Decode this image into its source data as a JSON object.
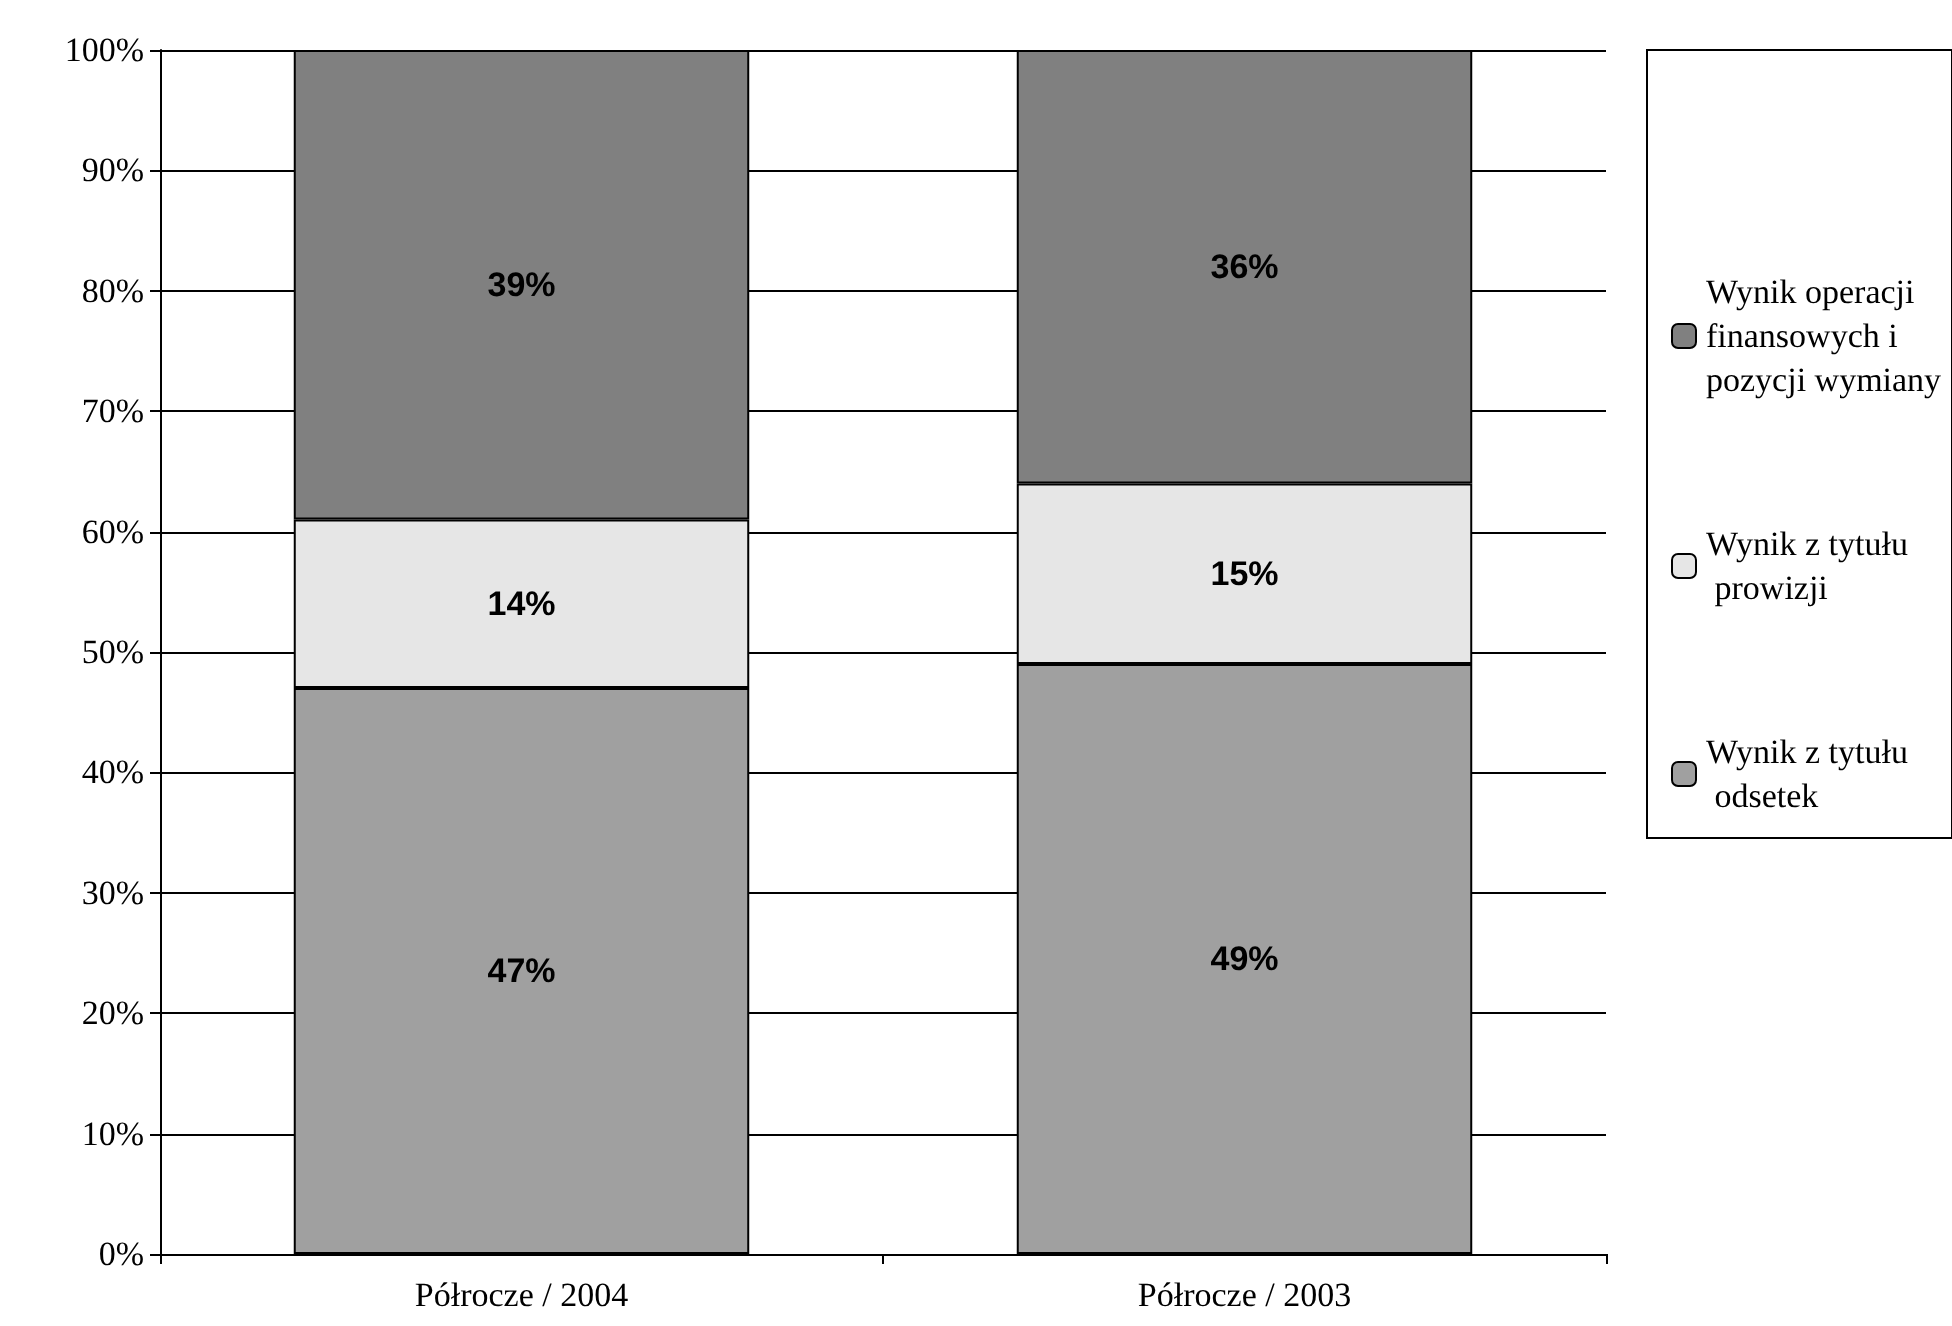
{
  "chart_data": {
    "type": "bar",
    "stacked": true,
    "categories": [
      "Półrocze / 2004",
      "Półrocze / 2003"
    ],
    "series": [
      {
        "name": "Wynik z tytułu odsetek",
        "color": "#a0a0a0",
        "values": [
          47,
          49
        ],
        "value_labels": [
          "47%",
          "49%"
        ]
      },
      {
        "name": "Wynik z tytułu prowizji",
        "color": "#e6e6e6",
        "values": [
          14,
          15
        ],
        "value_labels": [
          "14%",
          "15%"
        ]
      },
      {
        "name": "Wynik operacji finansowych i pozycji wymiany",
        "color": "#808080",
        "values": [
          39,
          36
        ],
        "value_labels": [
          "39%",
          "36%"
        ]
      }
    ],
    "ylim": [
      0,
      100
    ],
    "yticks": [
      {
        "value": 0,
        "label": "0%"
      },
      {
        "value": 10,
        "label": "10%"
      },
      {
        "value": 20,
        "label": "20%"
      },
      {
        "value": 30,
        "label": "30%"
      },
      {
        "value": 40,
        "label": "40%"
      },
      {
        "value": 50,
        "label": "50%"
      },
      {
        "value": 60,
        "label": "60%"
      },
      {
        "value": 70,
        "label": "70%"
      },
      {
        "value": 80,
        "label": "80%"
      },
      {
        "value": 90,
        "label": "90%"
      },
      {
        "value": 100,
        "label": "100%"
      }
    ],
    "grid": "y",
    "legend": "right"
  }
}
